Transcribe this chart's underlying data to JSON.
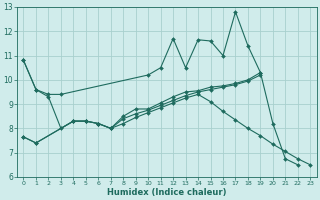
{
  "bg_color": "#d0eceb",
  "grid_color": "#a8d0ce",
  "line_color": "#1e6b5e",
  "xlabel": "Humidex (Indice chaleur)",
  "xlim": [
    -0.5,
    23.5
  ],
  "ylim": [
    6,
    13
  ],
  "xticks": [
    0,
    1,
    2,
    3,
    4,
    5,
    6,
    7,
    8,
    9,
    10,
    11,
    12,
    13,
    14,
    15,
    16,
    17,
    18,
    19,
    20,
    21,
    22,
    23
  ],
  "yticks": [
    6,
    7,
    8,
    9,
    10,
    11,
    12,
    13
  ],
  "series1_x": [
    0,
    1,
    2,
    3,
    10,
    11,
    12,
    13,
    14,
    15,
    16,
    17,
    18,
    19,
    20,
    21,
    22
  ],
  "series1_y": [
    10.8,
    9.6,
    9.4,
    9.4,
    10.2,
    10.5,
    11.7,
    10.5,
    11.65,
    11.6,
    11.0,
    12.8,
    11.4,
    10.3,
    8.2,
    6.75,
    6.5
  ],
  "series2_x": [
    0,
    1,
    4,
    5,
    6,
    7,
    8,
    9,
    10,
    11,
    12,
    13,
    14,
    15,
    16,
    17,
    18,
    19
  ],
  "series2_y": [
    7.65,
    7.4,
    8.3,
    8.3,
    8.2,
    8.0,
    8.5,
    8.8,
    8.8,
    9.05,
    9.3,
    9.5,
    9.55,
    9.7,
    9.75,
    9.85,
    10.0,
    10.3
  ],
  "series3_x": [
    0,
    1,
    4,
    5,
    6,
    7,
    8,
    9,
    10,
    11,
    12,
    13,
    14,
    15,
    16,
    17,
    18,
    19
  ],
  "series3_y": [
    7.65,
    7.4,
    8.3,
    8.3,
    8.2,
    8.0,
    8.4,
    8.6,
    8.75,
    8.95,
    9.15,
    9.35,
    9.5,
    9.6,
    9.7,
    9.8,
    9.95,
    10.2
  ],
  "series4_x": [
    0,
    1,
    2,
    3,
    4,
    5,
    6,
    7,
    8,
    9,
    10,
    11,
    12,
    13,
    14,
    15,
    16,
    17,
    18,
    19,
    20,
    21,
    22,
    23
  ],
  "series4_y": [
    10.8,
    9.6,
    9.3,
    8.0,
    8.3,
    8.3,
    8.2,
    8.0,
    8.2,
    8.45,
    8.65,
    8.85,
    9.05,
    9.25,
    9.4,
    9.1,
    8.7,
    8.35,
    8.0,
    7.7,
    7.35,
    7.05,
    6.75,
    6.5
  ]
}
